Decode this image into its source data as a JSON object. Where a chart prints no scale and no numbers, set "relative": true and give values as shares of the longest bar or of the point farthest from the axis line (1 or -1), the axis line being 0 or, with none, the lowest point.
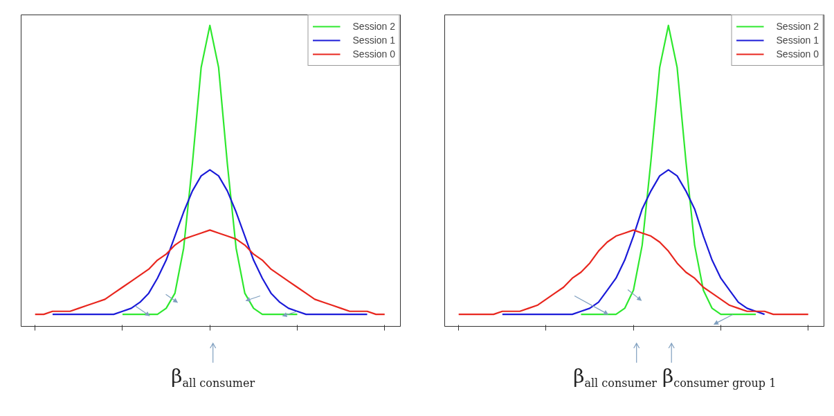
{
  "chart_data": [
    {
      "type": "line",
      "relative": true,
      "legend": "top right",
      "tick_labels": false,
      "annotations": [
        "β$_{all consumer}$"
      ],
      "categories": [
        null,
        null,
        null,
        null,
        null,
        null,
        null,
        null,
        null,
        null,
        null,
        null,
        null,
        null,
        null,
        null,
        null,
        null,
        null,
        null,
        null,
        null,
        null,
        null,
        null,
        null,
        null,
        null,
        null,
        null,
        null,
        null,
        null,
        null,
        null,
        null,
        null,
        null,
        null,
        null,
        null
      ],
      "series": [
        {
          "name": "Session 2",
          "color": "#2ee82e",
          "values": [
            null,
            null,
            null,
            null,
            null,
            null,
            null,
            null,
            null,
            null,
            0.04,
            0.04,
            0.04,
            0.04,
            0.04,
            0.06,
            0.11,
            0.26,
            0.54,
            0.86,
            1,
            0.86,
            0.54,
            0.26,
            0.11,
            0.06,
            0.04,
            0.04,
            0.04,
            0.04,
            0.04,
            null,
            null,
            null,
            null,
            null,
            null,
            null,
            null,
            null,
            null
          ]
        },
        {
          "name": "Session 1",
          "color": "#1a1ad8",
          "values": [
            null,
            null,
            0.04,
            0.04,
            0.04,
            0.04,
            0.04,
            0.04,
            0.04,
            0.04,
            0.05,
            0.06,
            0.08,
            0.11,
            0.16,
            0.22,
            0.3,
            0.38,
            0.45,
            0.5,
            0.52,
            0.5,
            0.45,
            0.38,
            0.3,
            0.22,
            0.16,
            0.11,
            0.08,
            0.06,
            0.05,
            0.04,
            0.04,
            0.04,
            0.04,
            0.04,
            0.04,
            0.04,
            0.04,
            null,
            null
          ]
        },
        {
          "name": "Session 0",
          "color": "#e8261e",
          "values": [
            0.04,
            0.04,
            0.05,
            0.05,
            0.05,
            0.06,
            0.07,
            0.08,
            0.09,
            0.11,
            0.13,
            0.15,
            0.17,
            0.19,
            0.22,
            0.24,
            0.27,
            0.29,
            0.3,
            0.31,
            0.32,
            0.31,
            0.3,
            0.29,
            0.27,
            0.24,
            0.22,
            0.19,
            0.17,
            0.15,
            0.13,
            0.11,
            0.09,
            0.08,
            0.07,
            0.06,
            0.05,
            0.05,
            0.05,
            0.04,
            0.04
          ]
        }
      ]
    },
    {
      "type": "line",
      "relative": true,
      "legend": "top right",
      "tick_labels": false,
      "annotations": [
        "β$_{all consumer}$",
        "β$_{consumer group 1}$"
      ],
      "categories": [
        null,
        null,
        null,
        null,
        null,
        null,
        null,
        null,
        null,
        null,
        null,
        null,
        null,
        null,
        null,
        null,
        null,
        null,
        null,
        null,
        null,
        null,
        null,
        null,
        null,
        null,
        null,
        null,
        null,
        null,
        null,
        null,
        null,
        null,
        null,
        null,
        null,
        null,
        null,
        null,
        null
      ],
      "series": [
        {
          "name": "Session 2",
          "color": "#2ee82e",
          "values": [
            null,
            null,
            null,
            null,
            null,
            null,
            null,
            null,
            null,
            null,
            null,
            null,
            null,
            null,
            0.04,
            0.04,
            0.04,
            0.04,
            0.04,
            0.06,
            0.12,
            0.27,
            0.55,
            0.86,
            1,
            0.86,
            0.55,
            0.27,
            0.12,
            0.06,
            0.04,
            0.04,
            0.04,
            0.04,
            0.04,
            null,
            null,
            null,
            null,
            null,
            null
          ]
        },
        {
          "name": "Session 1",
          "color": "#1a1ad8",
          "values": [
            null,
            null,
            null,
            null,
            null,
            0.04,
            0.04,
            0.04,
            0.04,
            0.04,
            0.04,
            0.04,
            0.04,
            0.04,
            0.05,
            0.06,
            0.08,
            0.12,
            0.16,
            0.22,
            0.3,
            0.39,
            0.45,
            0.5,
            0.52,
            0.5,
            0.45,
            0.39,
            0.3,
            0.22,
            0.16,
            0.12,
            0.08,
            0.06,
            0.05,
            0.04,
            null,
            null,
            null,
            null,
            null
          ]
        },
        {
          "name": "Session 0",
          "color": "#e8261e",
          "values": [
            0.04,
            0.04,
            0.04,
            0.04,
            0.04,
            0.05,
            0.05,
            0.05,
            0.06,
            0.07,
            0.09,
            0.11,
            0.13,
            0.16,
            0.18,
            0.21,
            0.25,
            0.28,
            0.3,
            0.31,
            0.32,
            0.31,
            0.3,
            0.28,
            0.25,
            0.21,
            0.18,
            0.16,
            0.13,
            0.11,
            0.09,
            0.07,
            0.06,
            0.05,
            0.05,
            0.05,
            0.04,
            0.04,
            0.04,
            0.04,
            0.04
          ]
        }
      ]
    }
  ]
}
